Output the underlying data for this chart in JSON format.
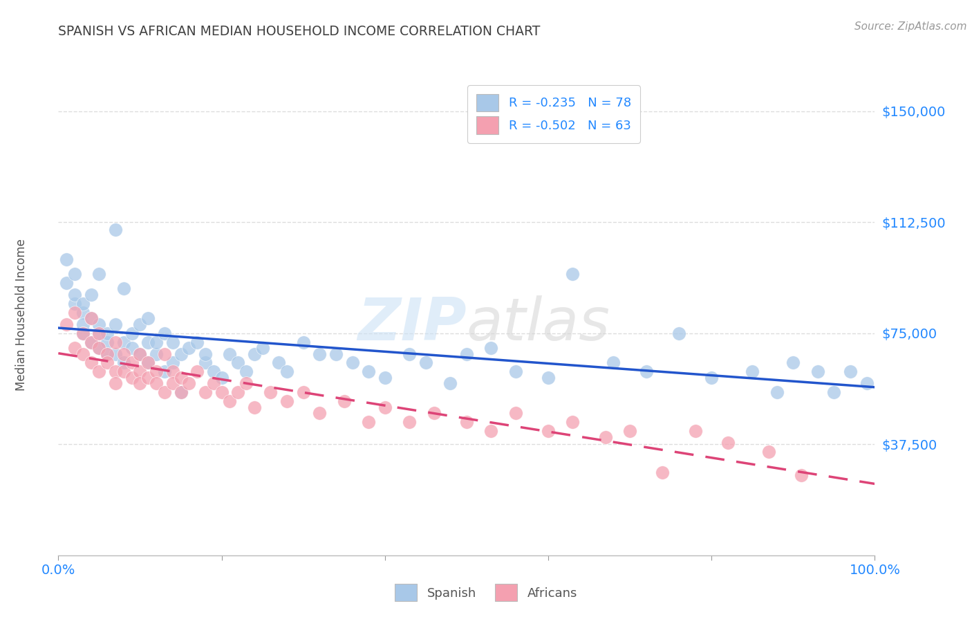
{
  "title": "SPANISH VS AFRICAN MEDIAN HOUSEHOLD INCOME CORRELATION CHART",
  "source_text": "Source: ZipAtlas.com",
  "ylabel": "Median Household Income",
  "xlim": [
    0,
    1
  ],
  "ylim": [
    0,
    162500
  ],
  "yticks": [
    37500,
    75000,
    112500,
    150000
  ],
  "ytick_labels": [
    "$37,500",
    "$75,000",
    "$112,500",
    "$150,000"
  ],
  "xtick_positions": [
    0.0,
    0.2,
    0.4,
    0.6,
    0.8,
    1.0
  ],
  "xtick_labels": [
    "0.0%",
    "",
    "",
    "",
    "",
    "100.0%"
  ],
  "watermark_zip": "ZIP",
  "watermark_atlas": "atlas",
  "legend_r1": "R = -0.235   N = 78",
  "legend_r2": "R = -0.502   N = 63",
  "legend_label1": "Spanish",
  "legend_label2": "Africans",
  "blue_scatter_color": "#a8c8e8",
  "pink_scatter_color": "#f4a0b0",
  "line_blue": "#2255cc",
  "line_pink": "#dd4477",
  "title_color": "#404040",
  "axis_label_color": "#555555",
  "tick_color": "#2288ff",
  "grid_color": "#dddddd",
  "spanish_x": [
    0.01,
    0.01,
    0.02,
    0.02,
    0.02,
    0.03,
    0.03,
    0.03,
    0.03,
    0.04,
    0.04,
    0.04,
    0.05,
    0.05,
    0.05,
    0.05,
    0.06,
    0.06,
    0.06,
    0.07,
    0.07,
    0.07,
    0.08,
    0.08,
    0.08,
    0.09,
    0.09,
    0.1,
    0.1,
    0.11,
    0.11,
    0.11,
    0.12,
    0.12,
    0.13,
    0.13,
    0.14,
    0.14,
    0.15,
    0.15,
    0.16,
    0.17,
    0.18,
    0.18,
    0.19,
    0.2,
    0.21,
    0.22,
    0.23,
    0.24,
    0.25,
    0.27,
    0.28,
    0.3,
    0.32,
    0.34,
    0.36,
    0.38,
    0.4,
    0.43,
    0.45,
    0.48,
    0.5,
    0.53,
    0.56,
    0.6,
    0.63,
    0.68,
    0.72,
    0.76,
    0.8,
    0.85,
    0.88,
    0.9,
    0.93,
    0.95,
    0.97,
    0.99
  ],
  "spanish_y": [
    100000,
    92000,
    95000,
    85000,
    88000,
    82000,
    78000,
    85000,
    75000,
    88000,
    72000,
    80000,
    95000,
    75000,
    70000,
    78000,
    72000,
    68000,
    75000,
    110000,
    68000,
    78000,
    90000,
    72000,
    65000,
    70000,
    75000,
    68000,
    78000,
    72000,
    80000,
    65000,
    68000,
    72000,
    75000,
    62000,
    72000,
    65000,
    68000,
    55000,
    70000,
    72000,
    65000,
    68000,
    62000,
    60000,
    68000,
    65000,
    62000,
    68000,
    70000,
    65000,
    62000,
    72000,
    68000,
    68000,
    65000,
    62000,
    60000,
    68000,
    65000,
    58000,
    68000,
    70000,
    62000,
    60000,
    95000,
    65000,
    62000,
    75000,
    60000,
    62000,
    55000,
    65000,
    62000,
    55000,
    62000,
    58000
  ],
  "african_x": [
    0.01,
    0.02,
    0.02,
    0.03,
    0.03,
    0.04,
    0.04,
    0.04,
    0.05,
    0.05,
    0.05,
    0.06,
    0.06,
    0.07,
    0.07,
    0.07,
    0.08,
    0.08,
    0.09,
    0.09,
    0.1,
    0.1,
    0.1,
    0.11,
    0.11,
    0.12,
    0.12,
    0.13,
    0.13,
    0.14,
    0.14,
    0.15,
    0.15,
    0.16,
    0.17,
    0.18,
    0.19,
    0.2,
    0.21,
    0.22,
    0.23,
    0.24,
    0.26,
    0.28,
    0.3,
    0.32,
    0.35,
    0.38,
    0.4,
    0.43,
    0.46,
    0.5,
    0.53,
    0.56,
    0.6,
    0.63,
    0.67,
    0.7,
    0.74,
    0.78,
    0.82,
    0.87,
    0.91
  ],
  "african_y": [
    78000,
    82000,
    70000,
    75000,
    68000,
    80000,
    72000,
    65000,
    75000,
    70000,
    62000,
    68000,
    65000,
    72000,
    62000,
    58000,
    68000,
    62000,
    65000,
    60000,
    68000,
    62000,
    58000,
    65000,
    60000,
    62000,
    58000,
    68000,
    55000,
    62000,
    58000,
    60000,
    55000,
    58000,
    62000,
    55000,
    58000,
    55000,
    52000,
    55000,
    58000,
    50000,
    55000,
    52000,
    55000,
    48000,
    52000,
    45000,
    50000,
    45000,
    48000,
    45000,
    42000,
    48000,
    42000,
    45000,
    40000,
    42000,
    28000,
    42000,
    38000,
    35000,
    27000
  ]
}
